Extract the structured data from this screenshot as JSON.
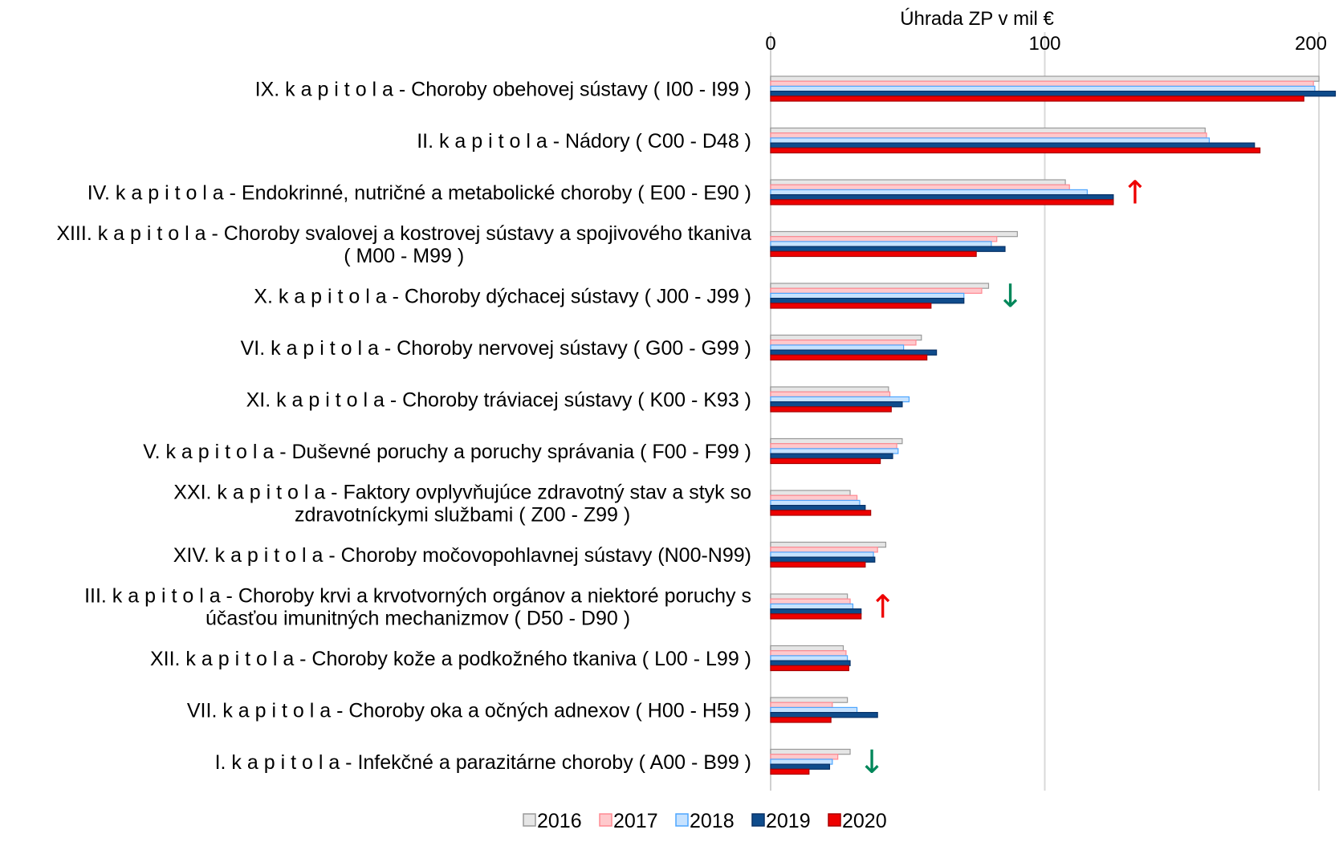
{
  "chart_data": {
    "type": "bar",
    "orientation": "horizontal",
    "xlabel": "Úhrada ZP v mil €",
    "xlim": [
      0,
      200
    ],
    "x_ticks": [
      "0",
      "100",
      "200"
    ],
    "grid": true,
    "legend_position": "bottom",
    "categories": [
      [
        "IX. k a p i t o l a - Choroby obehovej sústavy ( I00 - I99 )"
      ],
      [
        "II. k a p i t o l a - Nádory ( C00 - D48 )"
      ],
      [
        "IV. k a p i t o l a - Endokrinné, nutričné a metabolické choroby ( E00 - E90 )"
      ],
      [
        "XIII. k a p i t o l a - Choroby svalovej a kostrovej sústavy a spojivového tkaniva",
        "( M00 - M99 )"
      ],
      [
        "X. k a p i t o l a - Choroby dýchacej sústavy ( J00 - J99 )"
      ],
      [
        "VI. k a p i t o l a - Choroby nervovej sústavy ( G00 - G99 )"
      ],
      [
        "XI. k a p i t o l a - Choroby tráviacej sústavy ( K00 - K93 )"
      ],
      [
        "V. k a p i t o l a - Duševné poruchy a poruchy správania ( F00 - F99 )"
      ],
      [
        "XXI. k a p i t o l a - Faktory ovplyvňujúce zdravotný stav a styk so",
        "zdravotníckymi službami ( Z00 - Z99 )"
      ],
      [
        "XIV. k a p i t o l a - Choroby močovopohlavnej sústavy (N00-N99)"
      ],
      [
        "III. k a p i t o l a - Choroby krvi a krvotvorných orgánov a niektoré poruchy s",
        "účasťou imunitných mechanizmov ( D50 - D90 )"
      ],
      [
        "XII. k a p i t o l a - Choroby kože a podkožného tkaniva ( L00 - L99 )"
      ],
      [
        "VII. k a p i t o l a - Choroby oka a očných adnexov ( H00 - H59 )"
      ],
      [
        "I. k a p i t o l a - Infekčné a parazitárne choroby ( A00 - B99 )"
      ]
    ],
    "series": [
      {
        "name": "2016",
        "fill": "#e6e6e6",
        "stroke": "#999999",
        "values": [
          200,
          158.5,
          107.5,
          90,
          79.5,
          55,
          43,
          48,
          29,
          42,
          28,
          26.5,
          28,
          29
        ]
      },
      {
        "name": "2017",
        "fill": "#ffc9cc",
        "stroke": "#ff8a93",
        "values": [
          198,
          159,
          109,
          82.5,
          77,
          53,
          43.5,
          46,
          31.5,
          39,
          29,
          27.5,
          22.5,
          24.5
        ]
      },
      {
        "name": "2018",
        "fill": "#c6e2ff",
        "stroke": "#4da6ff",
        "values": [
          198.5,
          160,
          115.5,
          80.5,
          70.5,
          48.5,
          50.5,
          46.5,
          32.5,
          37.5,
          30,
          28,
          31.5,
          22.5
        ]
      },
      {
        "name": "2019",
        "fill": "#0f4c8c",
        "stroke": "#083166",
        "values": [
          206,
          176.5,
          125,
          85.5,
          70.5,
          60.5,
          48,
          44.5,
          34.5,
          38,
          33,
          29,
          39,
          21.5
        ]
      },
      {
        "name": "2020",
        "fill": "#ee0000",
        "stroke": "#a80000",
        "values": [
          194.5,
          178.5,
          125,
          75,
          58.5,
          57,
          44,
          40,
          36.5,
          34.5,
          33,
          28.5,
          22,
          14
        ]
      }
    ],
    "annotations": [
      {
        "category_index": 2,
        "symbol": "↑",
        "color": "#ee0000"
      },
      {
        "category_index": 4,
        "symbol": "↓",
        "color": "#00875a"
      },
      {
        "category_index": 10,
        "symbol": "↑",
        "color": "#ee0000"
      },
      {
        "category_index": 13,
        "symbol": "↓",
        "color": "#00875a"
      }
    ]
  }
}
